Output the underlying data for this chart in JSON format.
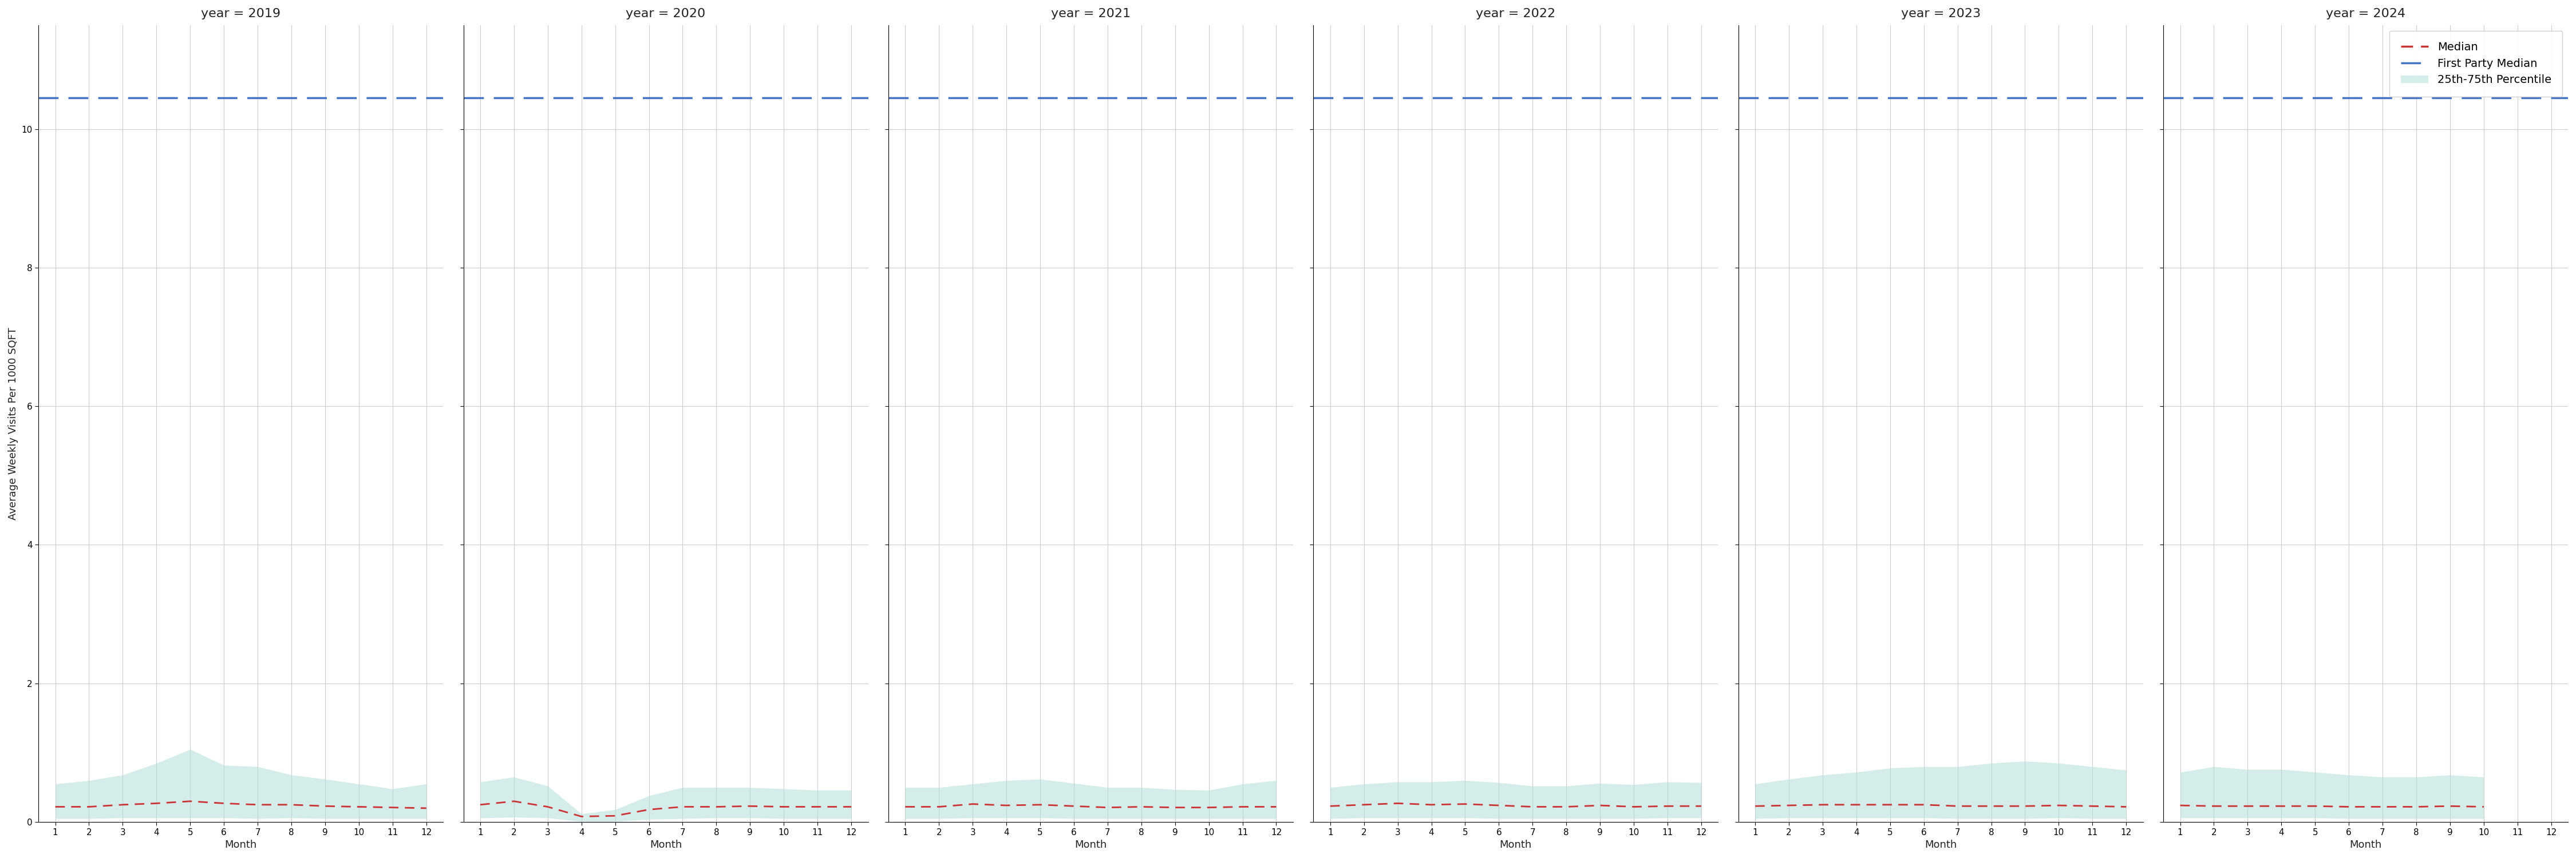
{
  "years": [
    2019,
    2020,
    2021,
    2022,
    2023,
    2024
  ],
  "first_party_median": 10.45,
  "ylabel": "Average Weekly Visits Per 1000 SQFT",
  "xlabel": "Month",
  "ylim": [
    0,
    11.5
  ],
  "yticks": [
    0,
    2,
    4,
    6,
    8,
    10
  ],
  "background_color": "#ffffff",
  "panel_color": "#ffffff",
  "median_color": "#cc3333",
  "fp_median_color": "#4472c4",
  "percentile_color": "#b2dfdb",
  "percentile_alpha": 0.55,
  "months_per_year": {
    "2019": [
      1,
      2,
      3,
      4,
      5,
      6,
      7,
      8,
      9,
      10,
      11,
      12
    ],
    "2020": [
      1,
      2,
      3,
      4,
      5,
      6,
      7,
      8,
      9,
      10,
      11,
      12
    ],
    "2021": [
      1,
      2,
      3,
      4,
      5,
      6,
      7,
      8,
      9,
      10,
      11,
      12
    ],
    "2022": [
      1,
      2,
      3,
      4,
      5,
      6,
      7,
      8,
      9,
      10,
      11,
      12
    ],
    "2023": [
      1,
      2,
      3,
      4,
      5,
      6,
      7,
      8,
      9,
      10,
      11,
      12
    ],
    "2024": [
      1,
      2,
      3,
      4,
      5,
      6,
      7,
      8,
      9,
      10
    ]
  },
  "median_values": {
    "2019": [
      0.22,
      0.22,
      0.25,
      0.27,
      0.3,
      0.27,
      0.25,
      0.25,
      0.23,
      0.22,
      0.21,
      0.2
    ],
    "2020": [
      0.25,
      0.3,
      0.22,
      0.08,
      0.09,
      0.18,
      0.22,
      0.22,
      0.23,
      0.22,
      0.22,
      0.22
    ],
    "2021": [
      0.22,
      0.22,
      0.26,
      0.24,
      0.25,
      0.23,
      0.21,
      0.22,
      0.21,
      0.21,
      0.22,
      0.22
    ],
    "2022": [
      0.23,
      0.25,
      0.27,
      0.25,
      0.26,
      0.24,
      0.22,
      0.22,
      0.24,
      0.22,
      0.23,
      0.23
    ],
    "2023": [
      0.23,
      0.24,
      0.25,
      0.25,
      0.25,
      0.25,
      0.23,
      0.23,
      0.23,
      0.24,
      0.23,
      0.22
    ],
    "2024": [
      0.24,
      0.23,
      0.23,
      0.23,
      0.23,
      0.22,
      0.22,
      0.22,
      0.23,
      0.22
    ]
  },
  "p25_values": {
    "2019": [
      0.05,
      0.05,
      0.06,
      0.06,
      0.06,
      0.06,
      0.05,
      0.06,
      0.05,
      0.05,
      0.05,
      0.05
    ],
    "2020": [
      0.06,
      0.07,
      0.06,
      0.01,
      0.01,
      0.04,
      0.05,
      0.06,
      0.06,
      0.05,
      0.05,
      0.05
    ],
    "2021": [
      0.05,
      0.05,
      0.06,
      0.06,
      0.06,
      0.05,
      0.05,
      0.05,
      0.05,
      0.05,
      0.05,
      0.05
    ],
    "2022": [
      0.05,
      0.06,
      0.06,
      0.06,
      0.06,
      0.05,
      0.05,
      0.05,
      0.05,
      0.05,
      0.06,
      0.06
    ],
    "2023": [
      0.05,
      0.06,
      0.06,
      0.06,
      0.06,
      0.06,
      0.05,
      0.05,
      0.05,
      0.06,
      0.05,
      0.05
    ],
    "2024": [
      0.06,
      0.06,
      0.06,
      0.06,
      0.06,
      0.05,
      0.05,
      0.05,
      0.05,
      0.05
    ]
  },
  "p75_values": {
    "2019": [
      0.55,
      0.6,
      0.68,
      0.85,
      1.05,
      0.82,
      0.8,
      0.68,
      0.62,
      0.55,
      0.48,
      0.55
    ],
    "2020": [
      0.58,
      0.65,
      0.52,
      0.12,
      0.18,
      0.38,
      0.5,
      0.5,
      0.5,
      0.48,
      0.46,
      0.46
    ],
    "2021": [
      0.5,
      0.5,
      0.55,
      0.6,
      0.62,
      0.56,
      0.5,
      0.5,
      0.47,
      0.46,
      0.55,
      0.6
    ],
    "2022": [
      0.5,
      0.55,
      0.58,
      0.58,
      0.6,
      0.57,
      0.52,
      0.52,
      0.56,
      0.54,
      0.58,
      0.57
    ],
    "2023": [
      0.55,
      0.62,
      0.68,
      0.72,
      0.78,
      0.8,
      0.8,
      0.85,
      0.88,
      0.85,
      0.8,
      0.75
    ],
    "2024": [
      0.72,
      0.8,
      0.76,
      0.76,
      0.72,
      0.68,
      0.65,
      0.65,
      0.68,
      0.65
    ]
  },
  "title_fontsize": 16,
  "label_fontsize": 13,
  "tick_fontsize": 11,
  "legend_fontsize": 14
}
